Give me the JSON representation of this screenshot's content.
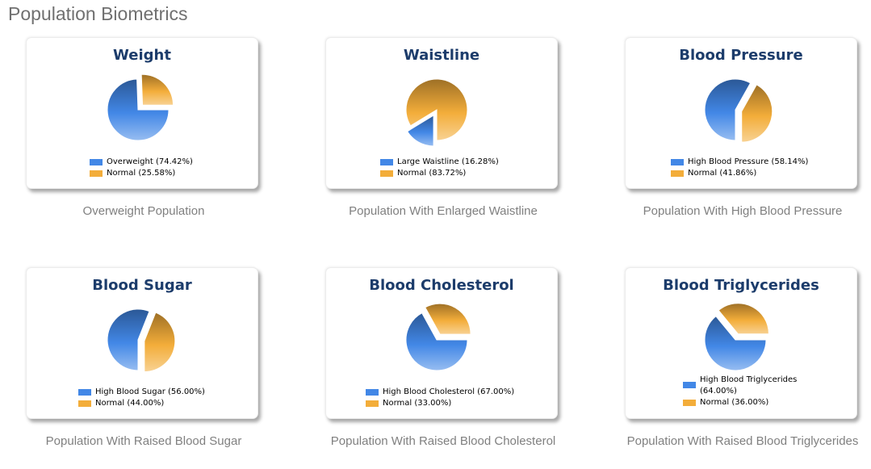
{
  "page": {
    "title": "Population Biometrics"
  },
  "colors": {
    "primary": "#4287e6",
    "secondary": "#f3ad3a"
  },
  "chart_data": [
    {
      "type": "pie",
      "title": "Weight",
      "caption": "Overweight Population",
      "slices": [
        {
          "label": "Overweight (74.42%)",
          "value": 74.42,
          "color": "#4287e6"
        },
        {
          "label": "Normal (25.58%)",
          "value": 25.58,
          "color": "#f3ad3a"
        }
      ],
      "exploded": 1,
      "start_angle_deg": 0
    },
    {
      "type": "pie",
      "title": "Waistline",
      "caption": "Population With Enlarged Waistline",
      "slices": [
        {
          "label": "Large Waistline (16.28%)",
          "value": 16.28,
          "color": "#4287e6"
        },
        {
          "label": "Normal (83.72%)",
          "value": 83.72,
          "color": "#f3ad3a"
        }
      ],
      "exploded": 0,
      "start_angle_deg": 90
    },
    {
      "type": "pie",
      "title": "Blood Pressure",
      "caption": "Population With High Blood Pressure",
      "slices": [
        {
          "label": "High Blood Pressure (58.14%)",
          "value": 58.14,
          "color": "#4287e6"
        },
        {
          "label": "Normal (41.86%)",
          "value": 41.86,
          "color": "#f3ad3a"
        }
      ],
      "exploded": 1,
      "start_angle_deg": 90
    },
    {
      "type": "pie",
      "title": "Blood Sugar",
      "caption": "Population With Raised Blood Sugar",
      "slices": [
        {
          "label": "High Blood Sugar (56.00%)",
          "value": 56.0,
          "color": "#4287e6"
        },
        {
          "label": "Normal (44.00%)",
          "value": 44.0,
          "color": "#f3ad3a"
        }
      ],
      "exploded": 1,
      "start_angle_deg": 90
    },
    {
      "type": "pie",
      "title": "Blood Cholesterol",
      "caption": "Population With Raised Blood Cholesterol",
      "slices": [
        {
          "label": "High Blood Cholesterol (67.00%)",
          "value": 67.0,
          "color": "#4287e6"
        },
        {
          "label": "Normal (33.00%)",
          "value": 33.0,
          "color": "#f3ad3a"
        }
      ],
      "exploded": 1,
      "start_angle_deg": 0
    },
    {
      "type": "pie",
      "title": "Blood Triglycerides",
      "caption": "Population With Raised Blood Triglycerides",
      "slices": [
        {
          "label": "High Blood Triglycerides (64.00%)",
          "value": 64.0,
          "color": "#4287e6"
        },
        {
          "label": "Normal (36.00%)",
          "value": 36.0,
          "color": "#f3ad3a"
        }
      ],
      "exploded": 1,
      "start_angle_deg": 0
    }
  ]
}
